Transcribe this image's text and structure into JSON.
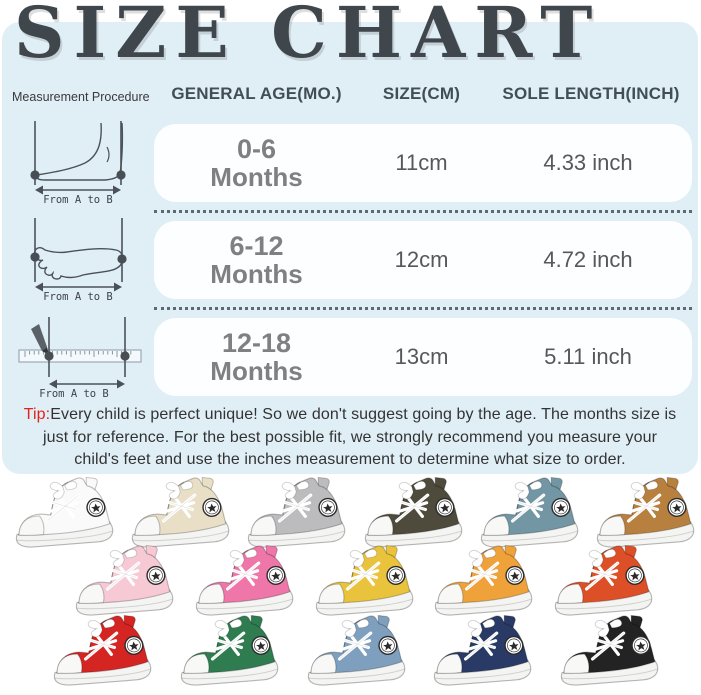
{
  "title": "SIZE CHART",
  "table": {
    "headers": {
      "measurement": "Measurement Procedure",
      "age": "GENERAL AGE(MO.)",
      "size": "SIZE(CM)",
      "sole": "SOLE LENGTH(INCH)"
    },
    "rows": [
      {
        "age_line1": "0-6",
        "age_line2": "Months",
        "size": "11cm",
        "sole": "4.33 inch",
        "diagram": "foot-side-view",
        "diagram_label": "From A to B"
      },
      {
        "age_line1": "6-12",
        "age_line2": "Months",
        "size": "12cm",
        "sole": "4.72 inch",
        "diagram": "foot-top-view",
        "diagram_label": "From A to B"
      },
      {
        "age_line1": "12-18",
        "age_line2": "Months",
        "size": "13cm",
        "sole": "5.11 inch",
        "diagram": "ruler-pencil",
        "diagram_label": "From A to B"
      }
    ]
  },
  "tip": {
    "label": "Tip:",
    "text": "Every child is perfect unique! So we don't suggest going by the age. The months size is just for reference. For the best possible fit, we strongly recommend you measure your child's feet and use the inches measurement to determine what size to order."
  },
  "colors": {
    "panel_background": "#e0eef6",
    "title_text": "#3f464c",
    "header_text": "#414e56",
    "age_text": "#7d8184",
    "value_text": "#57585a",
    "tip_red": "#e2231a",
    "dotted_separator": "#46525a",
    "diagram_stroke": "#4a5258"
  },
  "shoes": {
    "rows": [
      [
        {
          "name": "white",
          "color": "#fafafa"
        },
        {
          "name": "beige",
          "color": "#e8dfc6"
        },
        {
          "name": "gray",
          "color": "#bcbcbe"
        },
        {
          "name": "dark-olive",
          "color": "#4e4a3c"
        },
        {
          "name": "steel-blue",
          "color": "#7296a4"
        },
        {
          "name": "caramel",
          "color": "#b8803f"
        }
      ],
      [
        {
          "name": "light-pink",
          "color": "#f7c9d5"
        },
        {
          "name": "pink",
          "color": "#ee76a8"
        },
        {
          "name": "yellow",
          "color": "#e9c33c"
        },
        {
          "name": "amber",
          "color": "#f0a23a"
        },
        {
          "name": "orange-red",
          "color": "#dd4f27"
        }
      ],
      [
        {
          "name": "red",
          "color": "#d42522"
        },
        {
          "name": "green",
          "color": "#2f7c50"
        },
        {
          "name": "denim-blue",
          "color": "#7e9fbe"
        },
        {
          "name": "navy",
          "color": "#293a66"
        },
        {
          "name": "black",
          "color": "#232323"
        }
      ]
    ]
  }
}
